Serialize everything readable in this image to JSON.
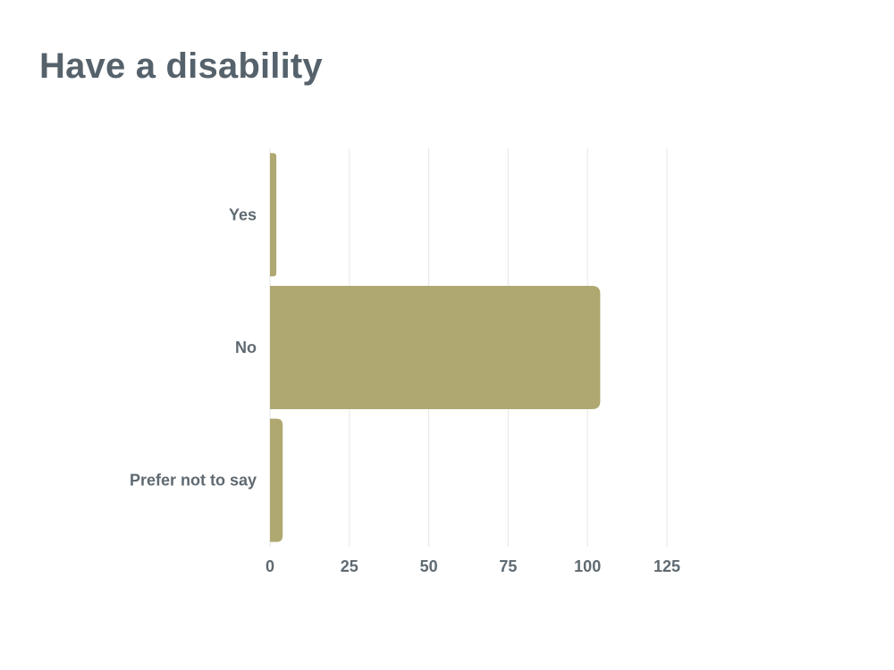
{
  "chart_data": {
    "type": "bar",
    "orientation": "horizontal",
    "title": "Have a disability",
    "categories": [
      "Yes",
      "No",
      "Prefer not to say"
    ],
    "values": [
      2,
      104,
      4
    ],
    "xlim": [
      0,
      125
    ],
    "xticks": [
      0,
      25,
      50,
      75,
      100,
      125
    ],
    "xlabel": "",
    "ylabel": "",
    "grid": true,
    "bar_color": "#afa870",
    "text_color": "#5f6a72",
    "title_color": "#56626b"
  }
}
